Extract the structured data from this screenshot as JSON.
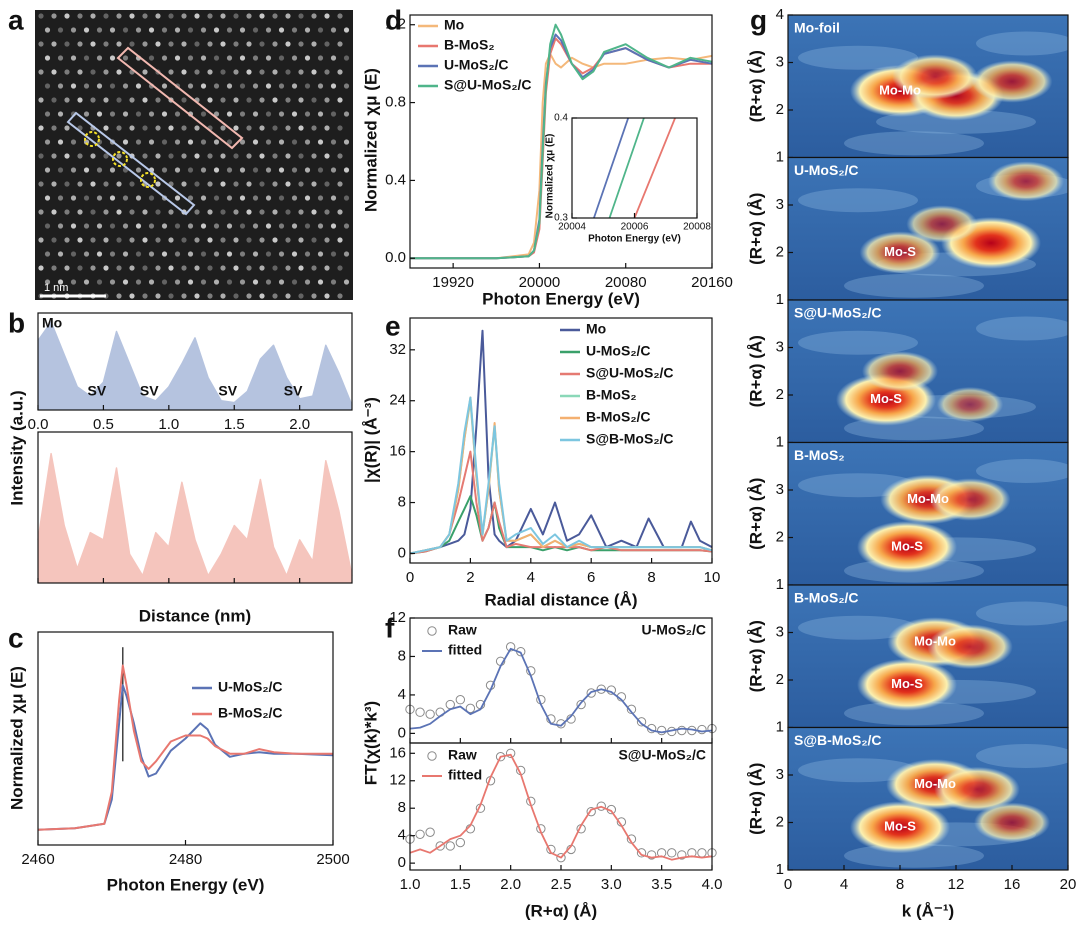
{
  "chart_data": [
    {
      "type": "image",
      "panel": "a",
      "scale_bar": "1 nm"
    },
    {
      "type": "area",
      "panel": "b",
      "xlabel": "Distance (nm)",
      "ylabel": "Intensity (a.u.)",
      "xlim": [
        0,
        2.4
      ],
      "ylim": [
        0,
        1.05
      ],
      "xticks": [
        {
          "value": 0,
          "label": "0.0"
        },
        0.5,
        {
          "value": 1,
          "label": "1.0"
        },
        1.5,
        {
          "value": 2,
          "label": "2.0"
        }
      ],
      "annotations": [
        "SV",
        "SV",
        "SV",
        "SV"
      ],
      "x": [
        0,
        0.1,
        0.2,
        0.3,
        0.4,
        0.5,
        0.6,
        0.7,
        0.8,
        0.9,
        1.0,
        1.1,
        1.2,
        1.3,
        1.4,
        1.5,
        1.6,
        1.7,
        1.8,
        1.9,
        2.0,
        2.1,
        2.2,
        2.3,
        2.4
      ],
      "series": [
        {
          "name": "Mo",
          "color": "#b5c3df",
          "values": [
            0.75,
            0.95,
            0.6,
            0.25,
            0.15,
            0.3,
            0.85,
            0.5,
            0.15,
            0.1,
            0.25,
            0.5,
            0.78,
            0.35,
            0.1,
            0.08,
            0.2,
            0.55,
            0.7,
            0.35,
            0.12,
            0.15,
            0.7,
            0.4,
            0.05
          ]
        },
        {
          "color": "#f5c5bd",
          "values": [
            0.3,
            0.9,
            0.4,
            0.1,
            0.35,
            0.3,
            0.8,
            0.2,
            0.05,
            0.35,
            0.25,
            0.7,
            0.3,
            0.05,
            0.2,
            0.4,
            0.3,
            0.72,
            0.25,
            0.05,
            0.3,
            0.15,
            0.85,
            0.5,
            0.05
          ]
        }
      ]
    },
    {
      "type": "line",
      "panel": "c",
      "xlabel": "Photon Energy (eV)",
      "ylabel": "Normalized χμ (E)",
      "xlim": [
        2460,
        2500
      ],
      "ylim": [
        0,
        1.4
      ],
      "xticks": [
        2460,
        2480,
        2500
      ],
      "x": [
        2460,
        2465,
        2469,
        2470,
        2471,
        2471.5,
        2472,
        2473,
        2474,
        2475,
        2476,
        2478,
        2480,
        2482,
        2483,
        2484,
        2486,
        2488,
        2490,
        2492,
        2495,
        2500
      ],
      "series": [
        {
          "name": "U-MoS₂/C",
          "color": "#5b73b5",
          "values": [
            0.1,
            0.11,
            0.14,
            0.3,
            0.8,
            1.05,
            0.98,
            0.8,
            0.58,
            0.45,
            0.47,
            0.62,
            0.7,
            0.8,
            0.76,
            0.66,
            0.58,
            0.6,
            0.61,
            0.6,
            0.6,
            0.59
          ]
        },
        {
          "name": "B-MoS₂/C",
          "color": "#e8776f",
          "values": [
            0.1,
            0.11,
            0.14,
            0.35,
            0.95,
            1.18,
            1.05,
            0.75,
            0.55,
            0.5,
            0.55,
            0.68,
            0.72,
            0.72,
            0.7,
            0.65,
            0.6,
            0.6,
            0.63,
            0.61,
            0.6,
            0.6
          ]
        }
      ]
    },
    {
      "type": "line",
      "panel": "d",
      "xlabel": "Photon Energy (eV)",
      "ylabel": "Normalized χμ (E)",
      "xlim": [
        19880,
        20160
      ],
      "ylim": [
        -0.05,
        1.25
      ],
      "xticks": [
        19920,
        20000,
        20080,
        20160
      ],
      "yticks": [
        {
          "value": 0,
          "label": "0.0"
        },
        0.4,
        0.8,
        1.2
      ],
      "x": [
        19880,
        19920,
        19960,
        19990,
        19995,
        20000,
        20003,
        20006,
        20010,
        20015,
        20020,
        20030,
        20040,
        20050,
        20060,
        20080,
        20100,
        20120,
        20140,
        20160
      ],
      "series": [
        {
          "name": "Mo",
          "color": "#f4b87a",
          "values": [
            0,
            0,
            0,
            0.02,
            0.08,
            0.35,
            0.8,
            1.0,
            1.05,
            1.0,
            0.98,
            1.03,
            1.0,
            0.98,
            1.0,
            1.0,
            1.02,
            1.03,
            1.02,
            1.04
          ]
        },
        {
          "name": "B-MoS₂",
          "color": "#e8776f",
          "values": [
            0,
            0,
            0,
            0.01,
            0.03,
            0.15,
            0.5,
            0.85,
            1.05,
            1.13,
            1.1,
            1.0,
            0.95,
            0.98,
            1.05,
            1.08,
            1.02,
            0.98,
            1.0,
            1.0
          ]
        },
        {
          "name": "U-MoS₂/C",
          "color": "#5b73b5",
          "values": [
            0,
            0,
            0,
            0.01,
            0.04,
            0.2,
            0.58,
            0.9,
            1.08,
            1.15,
            1.12,
            1.0,
            0.93,
            0.97,
            1.05,
            1.08,
            1.02,
            0.98,
            1.02,
            1.0
          ]
        },
        {
          "name": "S@U-MoS₂/C",
          "color": "#4fb58a",
          "values": [
            0,
            0,
            0,
            0.01,
            0.04,
            0.18,
            0.55,
            0.88,
            1.1,
            1.2,
            1.15,
            1.0,
            0.92,
            0.96,
            1.06,
            1.1,
            1.03,
            0.98,
            1.03,
            1.01
          ]
        }
      ],
      "inset": {
        "xlabel": "Photon Energy (eV)",
        "ylabel": "Normalized χμ (E)",
        "xlim": [
          20004,
          20008
        ],
        "ylim": [
          0.3,
          0.4
        ],
        "xticks": [
          20004,
          20006,
          20008
        ],
        "yticks": [
          0.3,
          0.4
        ],
        "series": [
          {
            "color": "#5b73b5",
            "x": [
              20004.7,
              20005.8
            ],
            "values": [
              0.3,
              0.4
            ]
          },
          {
            "color": "#4fb58a",
            "x": [
              20005.2,
              20006.3
            ],
            "values": [
              0.3,
              0.4
            ]
          },
          {
            "color": "#e8776f",
            "x": [
              20006.0,
              20007.3
            ],
            "values": [
              0.3,
              0.4
            ]
          }
        ]
      }
    },
    {
      "type": "line",
      "panel": "e",
      "xlabel": "Radial distance (Å)",
      "ylabel": "|χ(R)| (Å⁻³)",
      "xlim": [
        0,
        10
      ],
      "ylim": [
        -1.5,
        37
      ],
      "xticks": [
        0,
        2,
        4,
        6,
        8,
        10
      ],
      "yticks": [
        0,
        8,
        16,
        24,
        32
      ],
      "x": [
        0,
        0.5,
        1.0,
        1.3,
        1.6,
        1.8,
        2.0,
        2.2,
        2.4,
        2.6,
        2.8,
        2.95,
        3.2,
        3.5,
        4.0,
        4.4,
        4.8,
        5.2,
        5.6,
        6.0,
        6.5,
        7.0,
        7.5,
        7.9,
        8.4,
        9.0,
        9.3,
        9.6,
        10
      ],
      "series": [
        {
          "name": "Mo",
          "color": "#4a5a9a",
          "values": [
            0,
            0.5,
            1,
            1.5,
            2,
            3,
            7,
            20,
            35,
            12,
            3,
            2,
            1,
            2,
            7,
            3,
            8,
            2,
            3,
            6,
            1,
            2,
            1,
            5.5,
            1,
            1,
            5,
            2,
            1
          ]
        },
        {
          "name": "U-MoS₂/C",
          "color": "#3aa06a",
          "values": [
            0,
            0.3,
            1,
            2,
            5,
            7,
            9,
            6,
            2,
            4,
            8,
            4,
            1,
            1,
            1,
            0.5,
            1,
            0.5,
            1,
            0.5,
            0.5,
            0.5,
            0.5,
            0.5,
            0.5,
            0.5,
            0.5,
            0.5,
            0.3
          ]
        },
        {
          "name": "S@U-MoS₂/C",
          "color": "#e57a72",
          "values": [
            0,
            0.3,
            1,
            3,
            8,
            12,
            16,
            8,
            2,
            4,
            8,
            5,
            1,
            1.5,
            1,
            1,
            1,
            1,
            1,
            0.5,
            1,
            0.5,
            0.5,
            0.5,
            0.5,
            0.5,
            0.5,
            0.5,
            0.3
          ]
        },
        {
          "name": "B-MoS₂",
          "color": "#8ad8b8",
          "values": [
            0,
            0.5,
            1,
            3,
            10,
            18,
            24,
            12,
            3,
            10,
            20,
            10,
            2,
            2,
            3,
            1,
            2,
            1,
            1.5,
            1,
            1,
            1,
            1,
            1,
            1,
            1,
            1,
            1,
            0.5
          ]
        },
        {
          "name": "B-MoS₂/C",
          "color": "#f4b070",
          "values": [
            0,
            0.5,
            1,
            3,
            10,
            18,
            24.5,
            12,
            3,
            10,
            20.5,
            10,
            2,
            2,
            3,
            1,
            2,
            1,
            1.5,
            1,
            1,
            1,
            1,
            1,
            1,
            1,
            1,
            1,
            0.5
          ]
        },
        {
          "name": "S@B-MoS₂/C",
          "color": "#7cc6e0",
          "values": [
            0,
            0.5,
            1,
            3,
            11,
            19,
            24.5,
            13,
            3,
            11,
            20,
            11,
            2,
            3,
            4,
            1.5,
            3,
            1,
            2,
            1,
            1,
            1,
            1,
            1,
            1,
            1,
            1,
            1,
            0.5
          ]
        }
      ]
    },
    {
      "type": "fit",
      "panel": "f",
      "xlabel": "(R+α) (Å)",
      "ylabel": "FT(χ(k)*k³)",
      "xlim": [
        1,
        4
      ],
      "xticks": [
        {
          "value": 1,
          "label": "1.0"
        },
        1.5,
        {
          "value": 2,
          "label": "2.0"
        },
        2.5,
        {
          "value": 3,
          "label": "3.0"
        },
        3.5,
        {
          "value": 4,
          "label": "4.0"
        }
      ],
      "x": [
        1,
        1.1,
        1.2,
        1.3,
        1.4,
        1.5,
        1.6,
        1.7,
        1.8,
        1.9,
        2,
        2.1,
        2.2,
        2.3,
        2.4,
        2.5,
        2.6,
        2.7,
        2.8,
        2.9,
        3,
        3.1,
        3.2,
        3.3,
        3.4,
        3.5,
        3.6,
        3.7,
        3.8,
        3.9,
        4
      ],
      "subplots": [
        {
          "label": "U-MoS₂/C",
          "raw_label": "Raw",
          "fit_label": "fitted",
          "raw_color": "#8a8a8a",
          "fit_color": "#5b73b5",
          "ylim": [
            -1,
            12
          ],
          "yticks": [
            0,
            4,
            8,
            12
          ],
          "raw": [
            2.5,
            2.2,
            2.0,
            2.2,
            3.0,
            3.5,
            2.6,
            3.0,
            5,
            7.5,
            9,
            8.5,
            6.5,
            3.5,
            1.5,
            1.0,
            1.5,
            3,
            4.2,
            4.6,
            4.5,
            3.8,
            2.5,
            1.2,
            0.5,
            0.3,
            0.2,
            0.3,
            0.3,
            0.4,
            0.5
          ],
          "fitted": [
            0.5,
            0.6,
            1.0,
            1.8,
            2.5,
            2.8,
            2.0,
            2.5,
            4.5,
            7,
            8.8,
            8.4,
            6,
            3,
            1,
            0.8,
            1.8,
            3.2,
            4.3,
            4.6,
            4.3,
            3.5,
            2.2,
            1.0,
            0.3,
            0.1,
            0.3,
            0.5,
            0.4,
            0.2,
            0.3
          ]
        },
        {
          "label": "S@U-MoS₂/C",
          "raw_label": "Raw",
          "fit_label": "fitted",
          "raw_color": "#8a8a8a",
          "fit_color": "#e8776f",
          "ylim": [
            -1,
            17.5
          ],
          "yticks": [
            0,
            4,
            8,
            12,
            16
          ],
          "raw": [
            3.5,
            4.2,
            4.5,
            2.5,
            2.5,
            3,
            5,
            8,
            12,
            15.5,
            16,
            13.5,
            9,
            5,
            2,
            0.8,
            2,
            5,
            7.5,
            8.3,
            7.8,
            6,
            3.5,
            1.5,
            1.2,
            1.5,
            1.5,
            1.2,
            1.5,
            1.5,
            1.5
          ],
          "fitted": [
            1.5,
            2,
            1.5,
            2.5,
            3.5,
            4,
            5.5,
            8.5,
            12.5,
            15.5,
            15.8,
            13,
            8.5,
            4.5,
            1.5,
            0.8,
            2.5,
            5.5,
            7.8,
            8.2,
            7.6,
            5.5,
            3,
            1.2,
            0.8,
            1,
            0.5,
            0.8,
            1.0,
            0.8,
            1.0
          ]
        }
      ]
    },
    {
      "type": "wavelet",
      "panel": "g",
      "xlabel": "k (Å⁻¹)",
      "ylabel": "(R+α) (Å)",
      "xlim": [
        0,
        20
      ],
      "xticks": [
        0,
        4,
        8,
        12,
        16,
        20
      ],
      "maps": [
        {
          "name": "Mo-foil",
          "ylim": [
            1,
            4
          ],
          "yticks": [
            1,
            2,
            3,
            4
          ],
          "labels": [
            "Mo-Mo"
          ],
          "peaks": [
            {
              "k": 8,
              "r": 2.4,
              "intensity": 1
            },
            {
              "k": 12,
              "r": 2.3,
              "intensity": 0.9
            },
            {
              "k": 16,
              "r": 2.6,
              "intensity": 0.6
            },
            {
              "k": 10.5,
              "r": 2.7,
              "intensity": 0.7
            }
          ]
        },
        {
          "name": "U-MoS₂/C",
          "ylim": [
            1,
            4
          ],
          "yticks": [
            1,
            2,
            3
          ],
          "labels": [
            "Mo-S"
          ],
          "peaks": [
            {
              "k": 8,
              "r": 2.0,
              "intensity": 0.6
            },
            {
              "k": 14.5,
              "r": 2.2,
              "intensity": 1
            },
            {
              "k": 17,
              "r": 3.5,
              "intensity": 0.5
            },
            {
              "k": 11,
              "r": 2.6,
              "intensity": 0.4
            }
          ]
        },
        {
          "name": "S@U-MoS₂/C",
          "ylim": [
            1,
            4
          ],
          "yticks": [
            1,
            2,
            3
          ],
          "labels": [
            "Mo-S"
          ],
          "peaks": [
            {
              "k": 7,
              "r": 1.9,
              "intensity": 1
            },
            {
              "k": 8,
              "r": 2.5,
              "intensity": 0.5
            },
            {
              "k": 13,
              "r": 1.8,
              "intensity": 0.3
            }
          ]
        },
        {
          "name": "B-MoS₂",
          "ylim": [
            1,
            4
          ],
          "yticks": [
            1,
            2,
            3
          ],
          "labels": [
            "Mo-Mo",
            "Mo-S"
          ],
          "peaks": [
            {
              "k": 10,
              "r": 2.8,
              "intensity": 0.9
            },
            {
              "k": 8.5,
              "r": 1.8,
              "intensity": 1
            },
            {
              "k": 13,
              "r": 2.8,
              "intensity": 0.6
            }
          ]
        },
        {
          "name": "B-MoS₂/C",
          "ylim": [
            1,
            4
          ],
          "yticks": [
            1,
            2,
            3
          ],
          "labels": [
            "Mo-Mo",
            "Mo-S"
          ],
          "peaks": [
            {
              "k": 10.5,
              "r": 2.8,
              "intensity": 0.9
            },
            {
              "k": 8.5,
              "r": 1.9,
              "intensity": 1
            },
            {
              "k": 13,
              "r": 2.7,
              "intensity": 0.7
            }
          ]
        },
        {
          "name": "S@B-MoS₂/C",
          "ylim": [
            1,
            4
          ],
          "yticks": [
            1,
            2,
            3
          ],
          "labels": [
            "Mo-Mo",
            "Mo-S"
          ],
          "peaks": [
            {
              "k": 10.5,
              "r": 2.8,
              "intensity": 0.95
            },
            {
              "k": 8,
              "r": 1.9,
              "intensity": 1
            },
            {
              "k": 13.5,
              "r": 2.7,
              "intensity": 0.7
            },
            {
              "k": 16,
              "r": 2.0,
              "intensity": 0.5
            }
          ]
        }
      ]
    }
  ]
}
